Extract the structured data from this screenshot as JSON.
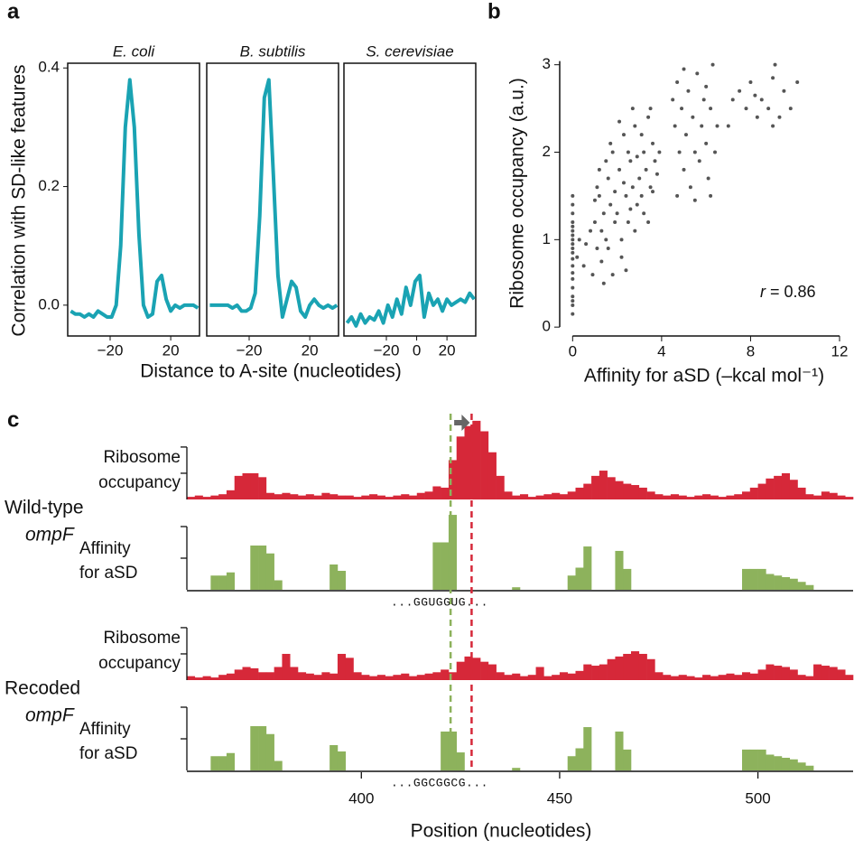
{
  "chart_data": [
    {
      "type": "line",
      "panel": "a",
      "ylabel": "Correlation with SD-like features",
      "xlabel": "Distance to A-site (nucleotides)",
      "color": "#1aa3b3",
      "x": [
        -46,
        -43,
        -40,
        -37,
        -34,
        -31,
        -28,
        -25,
        -22,
        -19,
        -16,
        -13,
        -10,
        -7,
        -4,
        -1,
        2,
        5,
        8,
        11,
        14,
        17,
        20,
        23,
        26,
        29,
        32,
        35,
        38
      ],
      "xlim": [
        -48,
        39
      ],
      "ylim": [
        -0.052,
        0.408
      ],
      "yticks": [
        {
          "value": 0,
          "label": "0.0"
        },
        0.2,
        0.4
      ],
      "subplots": [
        {
          "title": "E. coli",
          "xticks": [
            {
              "value": -20,
              "label": "−20"
            },
            20
          ],
          "values": [
            -0.01,
            -0.015,
            -0.015,
            -0.02,
            -0.015,
            -0.02,
            -0.01,
            -0.015,
            -0.02,
            -0.02,
            0.0,
            0.1,
            0.3,
            0.38,
            0.3,
            0.12,
            0.0,
            -0.02,
            -0.015,
            0.04,
            0.05,
            0.01,
            -0.01,
            0.0,
            -0.005,
            0.0,
            0.0,
            0.0,
            -0.005
          ]
        },
        {
          "title": "B. subtilis",
          "xticks": [
            {
              "value": -20,
              "label": "−20"
            },
            20
          ],
          "values": [
            0.0,
            0.0,
            0.0,
            0.0,
            0.0,
            -0.005,
            0.0,
            -0.01,
            -0.01,
            -0.005,
            0.02,
            0.15,
            0.35,
            0.38,
            0.22,
            0.05,
            -0.02,
            0.01,
            0.04,
            0.03,
            -0.01,
            -0.02,
            0.0,
            0.01,
            0.0,
            -0.005,
            0.0,
            -0.005,
            0.0
          ]
        },
        {
          "title": "S. cerevisiae",
          "xticks": [
            {
              "value": -20,
              "label": "−20"
            },
            0,
            20
          ],
          "values": [
            -0.03,
            -0.02,
            -0.035,
            -0.015,
            -0.03,
            -0.02,
            -0.025,
            -0.01,
            -0.03,
            0.0,
            -0.02,
            0.01,
            -0.015,
            0.03,
            0.0,
            0.04,
            0.05,
            -0.02,
            0.02,
            0.0,
            0.01,
            -0.01,
            0.01,
            0.0,
            0.005,
            0.01,
            0.005,
            0.02,
            0.01
          ]
        }
      ]
    },
    {
      "type": "scatter",
      "panel": "b",
      "xlabel": "Affinity for aSD (–kcal mol⁻¹)",
      "ylabel": "Ribosome occupancy (a.u.)",
      "color": "#555555",
      "x": [
        0,
        0,
        0,
        0,
        0,
        0,
        0,
        0,
        0,
        0,
        0,
        0,
        0,
        0,
        0,
        0,
        0,
        0,
        0,
        0,
        0.2,
        0.3,
        0.5,
        0.6,
        0.8,
        0.9,
        1.0,
        1.1,
        1.2,
        1.3,
        1.4,
        1.5,
        1.6,
        1.7,
        1.8,
        1.9,
        1.2,
        1.5,
        1.8,
        1.3,
        1.6,
        1.1,
        1.4,
        1.7,
        1.9,
        1.0,
        2.0,
        2.1,
        2.2,
        2.3,
        2.4,
        2.5,
        2.6,
        2.7,
        2.8,
        2.9,
        2.2,
        2.5,
        2.8,
        2.3,
        2.6,
        2.9,
        2.1,
        2.7,
        2.4,
        3.0,
        3.1,
        3.2,
        3.3,
        3.4,
        3.5,
        3.6,
        3.7,
        3.2,
        3.5,
        3.8,
        3.1,
        3.4,
        3.6,
        3.9,
        4.5,
        4.6,
        4.7,
        4.8,
        4.9,
        5.0,
        5.1,
        5.2,
        5.3,
        5.4,
        5.5,
        5.6,
        5.7,
        5.8,
        5.9,
        6.0,
        6.1,
        6.2,
        6.3,
        6.4,
        5.0,
        5.5,
        6.0,
        4.7,
        6.5,
        6.2,
        7.0,
        7.2,
        7.5,
        7.8,
        8.0,
        8.3,
        8.5,
        8.8,
        9.0,
        9.1,
        9.3,
        9.5,
        9.8,
        10.1,
        8.2,
        9.0
      ],
      "y": [
        0.15,
        0.25,
        0.35,
        0.45,
        0.55,
        0.62,
        0.7,
        0.78,
        0.85,
        0.9,
        0.95,
        1.0,
        1.05,
        1.1,
        1.15,
        1.2,
        1.3,
        1.4,
        1.5,
        0.3,
        0.8,
        1.0,
        0.7,
        0.95,
        1.1,
        0.6,
        1.2,
        0.9,
        1.5,
        0.75,
        1.3,
        1.0,
        1.7,
        1.4,
        0.6,
        1.2,
        1.8,
        1.9,
        2.0,
        1.1,
        0.9,
        1.6,
        0.5,
        2.1,
        1.55,
        1.45,
        1.3,
        1.8,
        1.0,
        2.2,
        1.5,
        1.2,
        1.9,
        1.6,
        2.3,
        1.4,
        0.8,
        2.0,
        1.1,
        1.65,
        1.35,
        1.95,
        2.35,
        2.5,
        0.65,
        1.7,
        1.5,
        2.0,
        1.8,
        2.4,
        1.6,
        2.1,
        1.9,
        1.3,
        2.5,
        1.75,
        2.2,
        1.2,
        1.55,
        2.0,
        2.6,
        2.3,
        2.8,
        2.0,
        2.5,
        1.8,
        2.2,
        2.7,
        1.6,
        2.4,
        2.0,
        2.9,
        1.9,
        2.3,
        2.6,
        2.1,
        1.7,
        2.5,
        3.0,
        2.0,
        2.95,
        1.45,
        2.75,
        1.5,
        2.3,
        1.5,
        2.3,
        2.6,
        2.7,
        2.5,
        2.8,
        2.4,
        2.6,
        2.5,
        2.3,
        3.0,
        2.4,
        2.7,
        2.5,
        2.8,
        2.65,
        2.85
      ],
      "xlim": [
        -0.5,
        12
      ],
      "ylim": [
        -0.05,
        3.1
      ],
      "xticks": [
        0,
        4,
        8,
        12
      ],
      "yticks": [
        0,
        1,
        2,
        3
      ],
      "annotation": {
        "symbol": "r",
        "text": "= 0.86"
      }
    },
    {
      "type": "histogram",
      "panel": "c",
      "xlabel": "Position (nucleotides)",
      "bins": [
        356,
        358,
        360,
        362,
        364,
        366,
        368,
        370,
        372,
        374,
        376,
        378,
        380,
        382,
        384,
        386,
        388,
        390,
        392,
        394,
        396,
        398,
        400,
        402,
        404,
        406,
        408,
        410,
        412,
        414,
        416,
        418,
        420,
        422,
        424,
        426,
        428,
        430,
        432,
        434,
        436,
        438,
        440,
        442,
        444,
        446,
        448,
        450,
        452,
        454,
        456,
        458,
        460,
        462,
        464,
        466,
        468,
        470,
        472,
        474,
        476,
        478,
        480,
        482,
        484,
        486,
        488,
        490,
        492,
        494,
        496,
        498,
        500,
        502,
        504,
        506,
        508,
        510,
        512,
        514,
        516,
        518,
        520,
        522,
        524
      ],
      "xlim": [
        356,
        524
      ],
      "xticks": [
        400,
        450,
        500
      ],
      "markers": [
        {
          "x": 422.5,
          "color": "#8db25c"
        },
        {
          "x": 427.8,
          "color": "#d62839"
        }
      ],
      "groups": [
        {
          "name": "Wild-type",
          "gene": "ompF",
          "sequence": "...GGUGGUG...",
          "series": [
            {
              "name": [
                "Ribosome",
                "occupancy"
              ],
              "color": "#d62839",
              "ylim": [
                0,
                3.1
              ],
              "yticks": [
                1,
                2
              ],
              "values": [
                0.1,
                0.15,
                0.1,
                0.15,
                0.2,
                0.35,
                0.9,
                1.0,
                1.0,
                0.85,
                0.25,
                0.2,
                0.25,
                0.2,
                0.15,
                0.2,
                0.15,
                0.25,
                0.2,
                0.15,
                0.15,
                0.1,
                0.15,
                0.2,
                0.15,
                0.1,
                0.15,
                0.2,
                0.15,
                0.25,
                0.3,
                0.5,
                0.45,
                1.5,
                2.4,
                2.8,
                3.0,
                2.6,
                1.8,
                0.9,
                0.3,
                0.15,
                0.2,
                0.1,
                0.15,
                0.2,
                0.25,
                0.2,
                0.3,
                0.45,
                0.6,
                0.9,
                1.1,
                0.85,
                0.7,
                0.6,
                0.55,
                0.45,
                0.3,
                0.2,
                0.15,
                0.2,
                0.15,
                0.1,
                0.15,
                0.2,
                0.15,
                0.1,
                0.15,
                0.2,
                0.3,
                0.45,
                0.6,
                0.8,
                0.9,
                1.0,
                0.75,
                0.45,
                0.2,
                0.15,
                0.3,
                0.25,
                0.15,
                0.1
              ]
            },
            {
              "name": [
                "Affinity",
                "for aSD"
              ],
              "color": "#8db25c",
              "ylim": [
                0,
                2.4
              ],
              "yticks": [
                1,
                2
              ],
              "values": [
                0,
                0,
                0,
                0.45,
                0.45,
                0.55,
                0,
                0,
                1.4,
                1.4,
                1.15,
                0.3,
                0,
                0,
                0,
                0,
                0,
                0,
                0.8,
                0.6,
                0,
                0,
                0,
                0,
                0,
                0,
                0,
                0,
                0,
                0,
                0,
                1.5,
                1.5,
                2.37,
                0,
                0,
                0,
                0,
                0,
                0,
                0,
                0.08,
                0,
                0,
                0,
                0,
                0,
                0,
                0.45,
                0.7,
                1.37,
                0,
                0,
                0,
                1.23,
                0.66,
                0,
                0,
                0,
                0,
                0,
                0,
                0,
                0,
                0,
                0,
                0,
                0,
                0,
                0,
                0.66,
                0.66,
                0.66,
                0.5,
                0.45,
                0.4,
                0.35,
                0.25,
                0.15,
                0,
                0,
                0,
                0,
                0
              ]
            }
          ]
        },
        {
          "name": "Recoded",
          "gene": "ompF",
          "sequence": "...GGCGGCG...",
          "series": [
            {
              "name": [
                "Ribosome",
                "occupancy"
              ],
              "color": "#d62839",
              "ylim": [
                0,
                3.1
              ],
              "yticks": [
                1,
                2
              ],
              "values": [
                0.15,
                0.1,
                0.15,
                0.1,
                0.2,
                0.25,
                0.4,
                0.5,
                0.45,
                0.3,
                0.3,
                0.5,
                1.0,
                0.5,
                0.3,
                0.25,
                0.2,
                0.3,
                0.25,
                1.0,
                0.85,
                0.3,
                0.2,
                0.15,
                0.2,
                0.15,
                0.2,
                0.25,
                0.15,
                0.2,
                0.25,
                0.3,
                0.4,
                0.3,
                0.7,
                0.9,
                0.85,
                0.7,
                0.6,
                0.3,
                0.2,
                0.25,
                0.15,
                0.2,
                0.5,
                0.15,
                0.2,
                0.3,
                0.25,
                0.35,
                0.6,
                0.55,
                0.6,
                0.8,
                0.9,
                1.0,
                1.1,
                1.0,
                0.8,
                0.3,
                0.2,
                0.15,
                0.2,
                0.15,
                0.1,
                0.2,
                0.15,
                0.2,
                0.25,
                0.2,
                0.3,
                0.25,
                0.4,
                0.6,
                0.55,
                0.5,
                0.4,
                0.2,
                0.15,
                0.6,
                0.55,
                0.5,
                0.4,
                0.2
              ]
            },
            {
              "name": [
                "Affinity",
                "for aSD"
              ],
              "color": "#8db25c",
              "ylim": [
                0,
                2.4
              ],
              "yticks": [
                1,
                2
              ],
              "values": [
                0,
                0,
                0,
                0.45,
                0.45,
                0.55,
                0,
                0,
                1.4,
                1.4,
                1.15,
                0.3,
                0,
                0,
                0,
                0,
                0,
                0,
                0.8,
                0.6,
                0,
                0,
                0,
                0,
                0,
                0,
                0,
                0,
                0,
                0,
                0,
                0,
                1.23,
                1.23,
                0.57,
                0,
                0,
                0,
                0,
                0,
                0,
                0.08,
                0,
                0,
                0,
                0,
                0,
                0,
                0.45,
                0.7,
                1.37,
                0,
                0,
                0,
                1.23,
                0.66,
                0,
                0,
                0,
                0,
                0,
                0,
                0,
                0,
                0,
                0,
                0,
                0,
                0,
                0,
                0.66,
                0.66,
                0.66,
                0.5,
                0.45,
                0.4,
                0.35,
                0.25,
                0.15,
                0,
                0,
                0,
                0,
                0
              ]
            }
          ]
        }
      ]
    }
  ]
}
